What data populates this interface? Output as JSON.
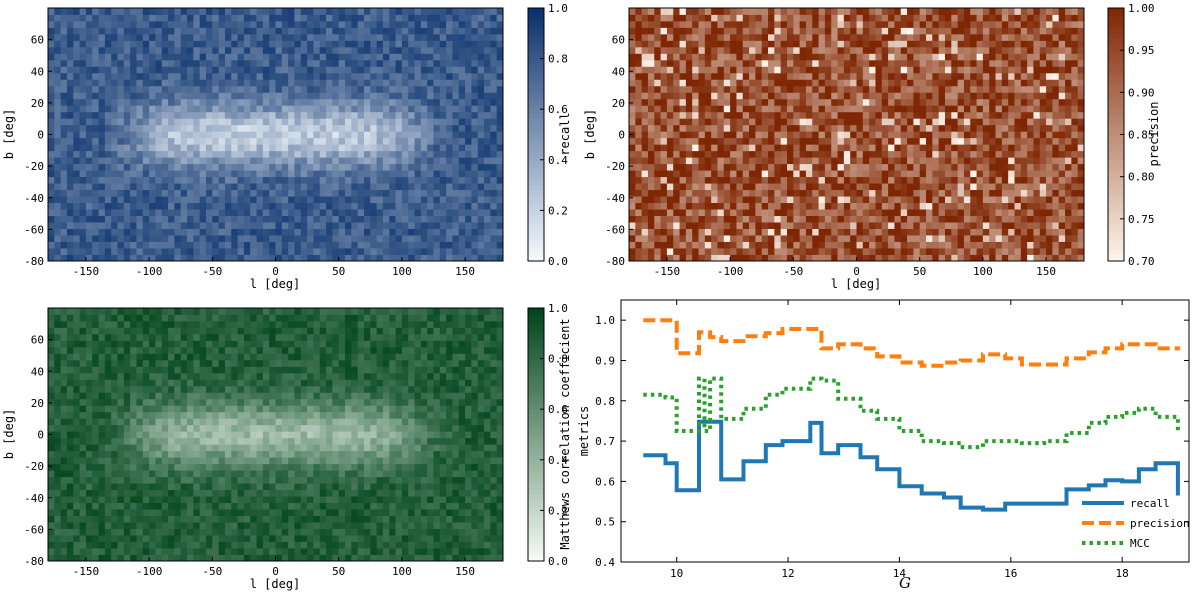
{
  "chart_data": [
    {
      "type": "heatmap",
      "id": "recall-map",
      "xlabel": "l [deg]",
      "ylabel": "b [deg]",
      "xlim": [
        -180,
        180
      ],
      "ylim": [
        -80,
        80
      ],
      "xticks": [
        -150,
        -100,
        -50,
        0,
        50,
        100,
        150
      ],
      "yticks": [
        -80,
        -60,
        -40,
        -20,
        0,
        20,
        40,
        60
      ],
      "colorbar": {
        "label": "recall",
        "range": [
          0.0,
          1.0
        ],
        "ticks": [
          "0.0",
          "0.2",
          "0.4",
          "0.6",
          "0.8",
          "1.0"
        ],
        "low": "#f7fbff",
        "high": "#08306b"
      },
      "pattern": "high recall (~0.6-0.8) at high |b|, low recall (~0.2-0.4) along the Galactic plane within |l|<120, |b|<20"
    },
    {
      "type": "heatmap",
      "id": "precision-map",
      "xlabel": "l [deg]",
      "ylabel": "b [deg]",
      "xlim": [
        -180,
        180
      ],
      "ylim": [
        -80,
        80
      ],
      "xticks": [
        -150,
        -100,
        -50,
        0,
        50,
        100,
        150
      ],
      "yticks": [
        -80,
        -60,
        -40,
        -20,
        0,
        20,
        40,
        60
      ],
      "colorbar": {
        "label": "precision",
        "range": [
          0.7,
          1.0
        ],
        "ticks": [
          "0.70",
          "0.75",
          "0.80",
          "0.85",
          "0.90",
          "0.95",
          "1.00"
        ],
        "low": "#fff5eb",
        "high": "#7f2704"
      },
      "pattern": "noisy, mostly 0.85-1.00 everywhere with scattered low pixels"
    },
    {
      "type": "heatmap",
      "id": "mcc-map",
      "xlabel": "l [deg]",
      "ylabel": "b [deg]",
      "xlim": [
        -180,
        180
      ],
      "ylim": [
        -80,
        80
      ],
      "xticks": [
        -150,
        -100,
        -50,
        0,
        50,
        100,
        150
      ],
      "yticks": [
        -80,
        -60,
        -40,
        -20,
        0,
        20,
        40,
        60
      ],
      "colorbar": {
        "label": "Matthews correlation coefficient",
        "range": [
          0.0,
          1.0
        ],
        "ticks": [
          "0.0",
          "0.2",
          "0.4",
          "0.6",
          "0.8",
          "1.0"
        ],
        "low": "#f7fcf5",
        "high": "#00441b"
      },
      "pattern": "high MCC (~0.7-0.9) at high |b|, lower (~0.3-0.5) along the Galactic plane"
    },
    {
      "type": "line",
      "id": "metrics-vs-G",
      "step": true,
      "xlabel": "G",
      "ylabel": "metrics",
      "xlim": [
        9.0,
        19.2
      ],
      "ylim": [
        0.4,
        1.05
      ],
      "xticks": [
        10,
        12,
        14,
        16,
        18
      ],
      "yticks": [
        "0.4",
        "0.5",
        "0.6",
        "0.7",
        "0.8",
        "0.9",
        "1.0"
      ],
      "x": [
        9.4,
        9.8,
        10.0,
        10.4,
        10.5,
        10.6,
        10.8,
        11.2,
        11.6,
        11.9,
        12.4,
        12.6,
        12.9,
        13.3,
        13.6,
        14.0,
        14.4,
        14.8,
        15.1,
        15.5,
        15.9,
        16.2,
        16.6,
        17.0,
        17.4,
        17.7,
        18.0,
        18.3,
        18.6
      ],
      "x_end": 19.0,
      "series": [
        {
          "name": "recall",
          "color": "#1f77b4",
          "dash": "solid",
          "values": [
            0.665,
            0.645,
            0.578,
            0.748,
            0.748,
            0.748,
            0.605,
            0.65,
            0.69,
            0.7,
            0.745,
            0.67,
            0.69,
            0.66,
            0.63,
            0.588,
            0.57,
            0.56,
            0.535,
            0.53,
            0.545,
            0.545,
            0.545,
            0.58,
            0.59,
            0.603,
            0.6,
            0.63,
            0.645
          ]
        },
        {
          "name": "precision",
          "color": "#ff7f0e",
          "dash": "dashed",
          "values": [
            1.0,
            1.0,
            0.918,
            0.97,
            0.97,
            0.958,
            0.948,
            0.96,
            0.968,
            0.978,
            0.978,
            0.93,
            0.94,
            0.93,
            0.91,
            0.895,
            0.887,
            0.895,
            0.9,
            0.915,
            0.905,
            0.89,
            0.89,
            0.905,
            0.92,
            0.93,
            0.94,
            0.94,
            0.93
          ]
        },
        {
          "name": "MCC",
          "color": "#2ca02c",
          "dash": "dotted",
          "values": [
            0.815,
            0.808,
            0.725,
            0.855,
            0.725,
            0.855,
            0.755,
            0.78,
            0.815,
            0.83,
            0.855,
            0.85,
            0.805,
            0.775,
            0.755,
            0.725,
            0.7,
            0.695,
            0.685,
            0.7,
            0.7,
            0.695,
            0.7,
            0.72,
            0.745,
            0.76,
            0.77,
            0.78,
            0.76
          ]
        }
      ],
      "series_tail": [
        0.565,
        0.935,
        0.725
      ],
      "legend": "lower-right"
    }
  ]
}
